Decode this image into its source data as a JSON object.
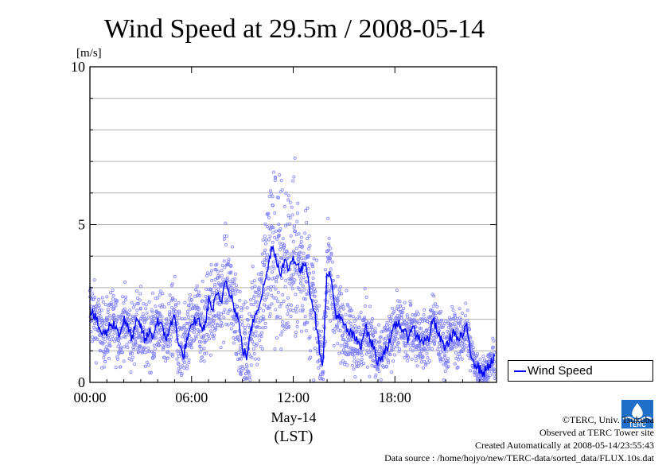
{
  "chart_data": {
    "type": "scatter",
    "title": "Wind Speed at 29.5m / 2008-05-14",
    "ylabel": "[m/s]",
    "xlabel": "May-14",
    "xlabel2": "(LST)",
    "ylim": [
      0,
      10
    ],
    "xlim_hours": [
      0,
      24
    ],
    "yticks": [
      "0",
      "5",
      "10"
    ],
    "xticks": [
      {
        "hour": 0,
        "label": "00:00"
      },
      {
        "hour": 6,
        "label": "06:00"
      },
      {
        "hour": 12,
        "label": "12:00"
      },
      {
        "hour": 18,
        "label": "18:00"
      }
    ],
    "grid": true,
    "legend": "right",
    "series": [
      {
        "name": "Wind Speed",
        "color": "#0000ff",
        "point_color": "#8080ff",
        "mean_hours": [
          0.0,
          0.25,
          0.5,
          0.75,
          1.0,
          1.25,
          1.5,
          1.75,
          2.0,
          2.25,
          2.5,
          2.75,
          3.0,
          3.25,
          3.5,
          3.75,
          4.0,
          4.25,
          4.5,
          4.75,
          5.0,
          5.25,
          5.5,
          5.75,
          6.0,
          6.25,
          6.5,
          6.75,
          7.0,
          7.25,
          7.5,
          7.75,
          8.0,
          8.25,
          8.5,
          8.75,
          9.0,
          9.25,
          9.5,
          9.75,
          10.0,
          10.25,
          10.5,
          10.75,
          11.0,
          11.25,
          11.5,
          11.75,
          12.0,
          12.25,
          12.5,
          12.75,
          13.0,
          13.25,
          13.5,
          13.75,
          14.0,
          14.25,
          14.5,
          14.75,
          15.0,
          15.25,
          15.5,
          15.75,
          16.0,
          16.25,
          16.5,
          16.75,
          17.0,
          17.25,
          17.5,
          17.75,
          18.0,
          18.25,
          18.5,
          18.75,
          19.0,
          19.25,
          19.5,
          19.75,
          20.0,
          20.25,
          20.5,
          20.75,
          21.0,
          21.25,
          21.5,
          21.75,
          22.0,
          22.25,
          22.5,
          22.75,
          23.0,
          23.25,
          23.5,
          23.75
        ],
        "mean_values": [
          2.3,
          2.1,
          1.8,
          1.5,
          1.6,
          1.9,
          1.8,
          1.5,
          2.0,
          1.7,
          1.4,
          1.9,
          1.8,
          1.3,
          1.6,
          1.5,
          2.0,
          1.7,
          1.4,
          1.8,
          2.1,
          1.2,
          0.8,
          1.4,
          1.7,
          2.0,
          1.9,
          1.6,
          2.6,
          2.3,
          2.8,
          2.5,
          3.3,
          2.9,
          2.4,
          2.0,
          1.1,
          0.8,
          1.6,
          2.2,
          2.5,
          3.0,
          3.6,
          4.4,
          3.9,
          3.5,
          3.8,
          3.6,
          4.0,
          3.7,
          3.5,
          3.9,
          2.8,
          2.3,
          1.2,
          0.6,
          3.6,
          3.2,
          2.2,
          2.0,
          1.8,
          1.6,
          1.5,
          1.3,
          1.2,
          1.8,
          1.4,
          1.1,
          0.6,
          0.9,
          1.1,
          1.3,
          1.8,
          1.9,
          1.6,
          1.4,
          1.8,
          1.5,
          1.4,
          1.3,
          1.4,
          2.0,
          1.6,
          1.3,
          1.1,
          1.4,
          1.6,
          1.3,
          1.5,
          1.7,
          0.9,
          0.6,
          0.4,
          0.3,
          0.5,
          0.7
        ],
        "scatter_spread": [
          0.7,
          0.6,
          0.6,
          0.6,
          0.6,
          0.6,
          0.6,
          0.6,
          0.6,
          0.6,
          0.6,
          0.6,
          0.6,
          0.6,
          0.6,
          0.6,
          0.6,
          0.6,
          0.6,
          0.6,
          0.7,
          0.7,
          0.7,
          0.7,
          0.7,
          0.7,
          0.7,
          0.7,
          0.8,
          0.8,
          0.8,
          0.8,
          0.9,
          0.9,
          0.9,
          0.9,
          0.8,
          0.8,
          0.9,
          1.0,
          1.1,
          1.3,
          1.5,
          1.7,
          1.8,
          1.8,
          1.7,
          1.6,
          1.5,
          1.4,
          1.3,
          1.3,
          1.2,
          1.0,
          0.8,
          0.7,
          0.9,
          0.8,
          0.7,
          0.7,
          0.6,
          0.6,
          0.6,
          0.6,
          0.6,
          0.6,
          0.6,
          0.6,
          0.5,
          0.5,
          0.5,
          0.5,
          0.5,
          0.5,
          0.5,
          0.5,
          0.5,
          0.5,
          0.5,
          0.5,
          0.5,
          0.5,
          0.5,
          0.5,
          0.5,
          0.5,
          0.5,
          0.5,
          0.5,
          0.5,
          0.4,
          0.3,
          0.3,
          0.3,
          0.3,
          0.3
        ]
      }
    ]
  },
  "credits": {
    "line1": "©TERC, Univ. Tsukuba",
    "line2": "Observed at TERC Tower site",
    "line3": "Created Automatically at 2008-05-14/23:55:43",
    "line4": "Data source : /home/hojyo/new/TERC-data/sorted_data/FLUX.10s.dat"
  },
  "logo_text": "TERC"
}
